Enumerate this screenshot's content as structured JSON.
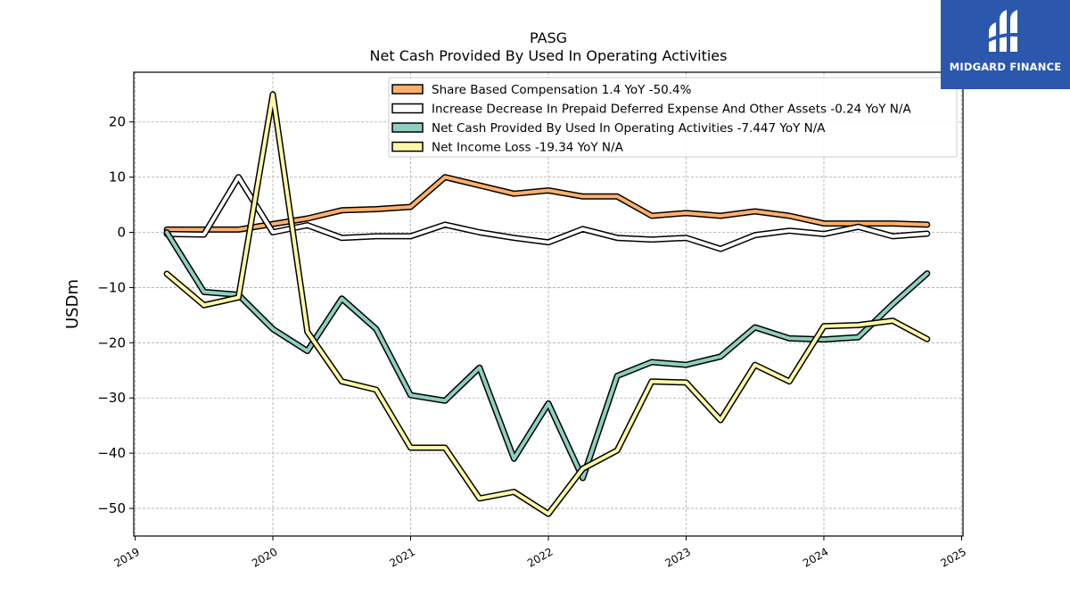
{
  "chart_data": {
    "type": "line",
    "title": "PASG",
    "subtitle": "Net Cash Provided By Used In Operating Activities",
    "ylabel": "USDm",
    "xlabel": "",
    "ylim": [
      -55,
      29
    ],
    "xlim": [
      2018.99,
      2025.01
    ],
    "yticks": [
      20,
      10,
      0,
      -10,
      -20,
      -30,
      -40,
      -50
    ],
    "ytick_labels": [
      "20",
      "10",
      "0",
      "−10",
      "−20",
      "−30",
      "−40",
      "−50"
    ],
    "xticks": [
      2019,
      2020,
      2021,
      2022,
      2023,
      2024,
      2025
    ],
    "xtick_labels": [
      "2019",
      "2020",
      "2021",
      "2022",
      "2023",
      "2024",
      "2025"
    ],
    "grid": true,
    "legend_position": "top-right",
    "x": [
      2019.23,
      2019.5,
      2019.75,
      2020.0,
      2020.25,
      2020.5,
      2020.75,
      2021.0,
      2021.25,
      2021.5,
      2021.75,
      2022.0,
      2022.25,
      2022.5,
      2022.75,
      2023.0,
      2023.25,
      2023.5,
      2023.75,
      2024.0,
      2024.25,
      2024.5,
      2024.75
    ],
    "series": [
      {
        "name": "Share Based Compensation  1.4 YoY -50.4%",
        "color": "#fdb06a",
        "values": [
          0.5,
          0.5,
          0.5,
          1.5,
          2.5,
          4,
          4.2,
          4.6,
          10,
          8.5,
          7,
          7.6,
          6.5,
          6.5,
          3,
          3.5,
          3,
          3.8,
          3,
          1.6,
          1.6,
          1.6,
          1.4
        ]
      },
      {
        "name": "Increase Decrease In Prepaid Deferred Expense And Other Assets  -0.24 YoY N/A",
        "color": "#ffffff",
        "values": [
          -0.3,
          -0.4,
          10,
          0,
          1.3,
          -1,
          -0.7,
          -0.7,
          1.4,
          0,
          -1,
          -1.8,
          0.6,
          -1,
          -1.3,
          -1,
          -3,
          -0.5,
          0.3,
          -0.3,
          1,
          -0.7,
          -0.24
        ]
      },
      {
        "name": "Net Cash Provided By Used In Operating Activities  -7.447 YoY N/A",
        "color": "#8ecfbf",
        "values": [
          0,
          -10.8,
          -11.3,
          -17.5,
          -21.5,
          -12,
          -17.5,
          -29.5,
          -30.5,
          -24.5,
          -41,
          -31,
          -44.5,
          -26,
          -23.5,
          -24,
          -22.5,
          -17.2,
          -19.2,
          -19.4,
          -19,
          -13,
          -7.447
        ]
      },
      {
        "name": "Net Income Loss  -19.34 YoY N/A",
        "color": "#fdf8a6",
        "values": [
          -7.5,
          -13.2,
          -11.8,
          25,
          -18,
          -27,
          -28.5,
          -39,
          -39,
          -48.2,
          -47,
          -51,
          -42.8,
          -39.5,
          -27,
          -27.2,
          -34,
          -24,
          -27,
          -17,
          -16.8,
          -16,
          -19.34
        ]
      }
    ]
  },
  "logo": {
    "text": "MIDGARD FINANCE",
    "icon": "midgard-logo-icon"
  }
}
